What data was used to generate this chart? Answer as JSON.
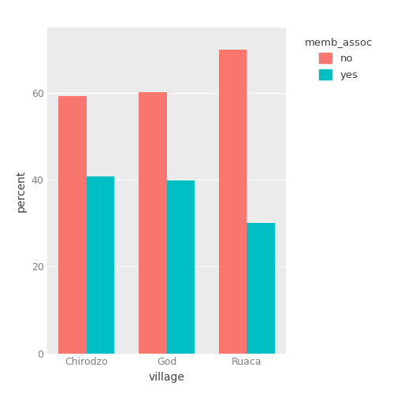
{
  "villages": [
    "Chirodzo",
    "God",
    "Ruaca"
  ],
  "no_values": [
    59.2,
    60.2,
    69.9
  ],
  "yes_values": [
    40.8,
    39.8,
    30.1
  ],
  "color_no": "#F8766D",
  "color_yes": "#00BFC4",
  "xlabel": "village",
  "ylabel": "percent",
  "legend_title": "memb_assoc",
  "legend_labels": [
    "no",
    "yes"
  ],
  "ylim": [
    0,
    75
  ],
  "yticks": [
    0,
    20,
    40,
    60
  ],
  "bar_width": 0.35,
  "plot_bg_color": "#EBEBEB",
  "fig_bg_color": "#FFFFFF",
  "grid_color": "#FFFFFF",
  "tick_label_color": "#808080",
  "axis_label_color": "#404040"
}
